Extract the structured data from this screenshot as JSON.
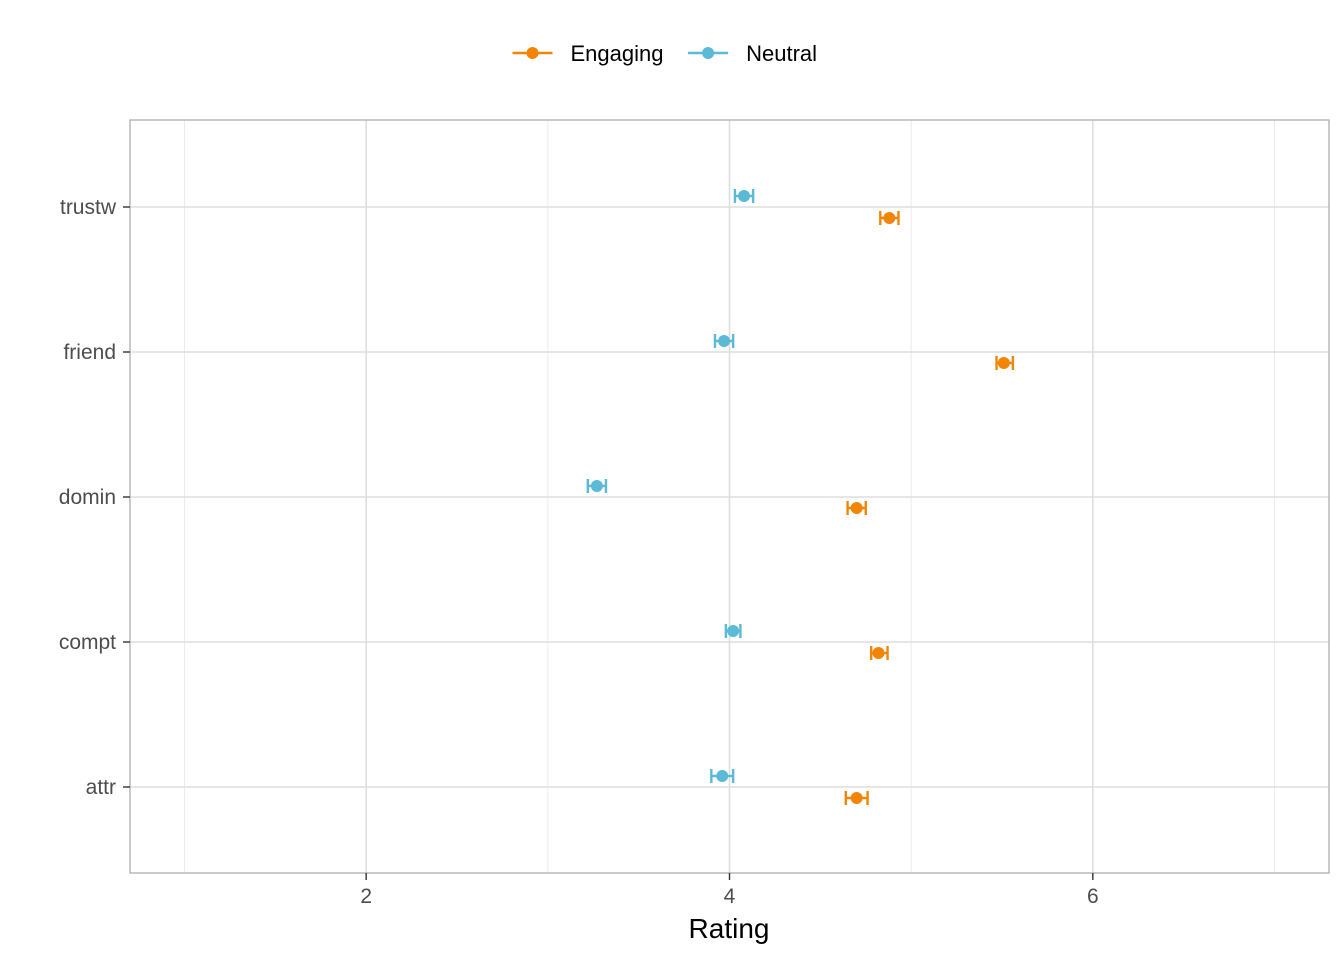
{
  "chart_data": {
    "type": "scatter",
    "title": "",
    "xlabel": "Rating",
    "ylabel": "",
    "xlim": [
      0.7,
      7.3
    ],
    "x_ticks": [
      2,
      4,
      6
    ],
    "x_minor_ticks": [
      1,
      3,
      5,
      7
    ],
    "categories": [
      "trustw",
      "friend",
      "domin",
      "compt",
      "attr"
    ],
    "grid": true,
    "legend_position": "top",
    "error_bars": true,
    "series": [
      {
        "name": "Engaging",
        "color": "#F28505",
        "values": [
          4.88,
          5.51,
          4.7,
          4.82,
          4.7
        ],
        "lower": [
          4.83,
          5.47,
          4.65,
          4.78,
          4.64
        ],
        "upper": [
          4.93,
          5.56,
          4.75,
          4.87,
          4.76
        ]
      },
      {
        "name": "Neutral",
        "color": "#5BBAD5",
        "values": [
          4.08,
          3.97,
          3.27,
          4.02,
          3.96
        ],
        "lower": [
          4.03,
          3.92,
          3.22,
          3.98,
          3.9
        ],
        "upper": [
          4.13,
          4.02,
          3.32,
          4.06,
          4.02
        ]
      }
    ]
  }
}
